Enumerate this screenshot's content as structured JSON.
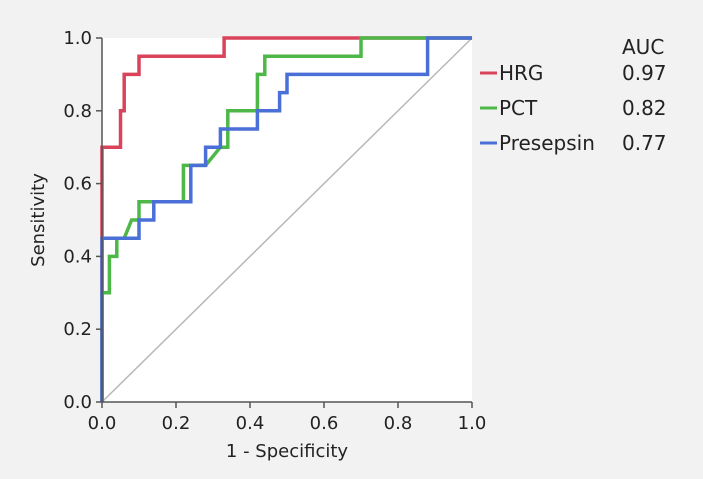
{
  "chart_data": {
    "type": "line",
    "title": "",
    "xlabel": "1 - Specificity",
    "ylabel": "Sensitivity",
    "xlim": [
      0,
      1
    ],
    "ylim": [
      0,
      1
    ],
    "xticks": [
      "0.0",
      "0.2",
      "0.4",
      "0.6",
      "0.8",
      "1.0"
    ],
    "yticks": [
      "0.0",
      "0.2",
      "0.4",
      "0.6",
      "0.8",
      "1.0"
    ],
    "legend_header": "AUC",
    "legend_position": "right",
    "diagonal_reference": true,
    "series": [
      {
        "name": "HRG",
        "auc": "0.97",
        "color": "#d9445a",
        "points": [
          [
            0,
            0
          ],
          [
            0,
            0.7
          ],
          [
            0.05,
            0.7
          ],
          [
            0.05,
            0.8
          ],
          [
            0.06,
            0.8
          ],
          [
            0.06,
            0.9
          ],
          [
            0.1,
            0.9
          ],
          [
            0.1,
            0.95
          ],
          [
            0.33,
            0.95
          ],
          [
            0.33,
            1.0
          ],
          [
            1.0,
            1.0
          ]
        ]
      },
      {
        "name": "PCT",
        "auc": "0.82",
        "color": "#4db848",
        "points": [
          [
            0,
            0
          ],
          [
            0,
            0.3
          ],
          [
            0.02,
            0.3
          ],
          [
            0.02,
            0.4
          ],
          [
            0.04,
            0.4
          ],
          [
            0.04,
            0.45
          ],
          [
            0.06,
            0.45
          ],
          [
            0.08,
            0.5
          ],
          [
            0.1,
            0.5
          ],
          [
            0.1,
            0.55
          ],
          [
            0.2,
            0.55
          ],
          [
            0.22,
            0.55
          ],
          [
            0.22,
            0.65
          ],
          [
            0.28,
            0.65
          ],
          [
            0.32,
            0.7
          ],
          [
            0.34,
            0.7
          ],
          [
            0.34,
            0.8
          ],
          [
            0.42,
            0.8
          ],
          [
            0.42,
            0.9
          ],
          [
            0.44,
            0.9
          ],
          [
            0.44,
            0.95
          ],
          [
            0.7,
            0.95
          ],
          [
            0.7,
            1.0
          ],
          [
            1.0,
            1.0
          ]
        ]
      },
      {
        "name": "Presepsin",
        "auc": "0.77",
        "color": "#4a6fd6",
        "points": [
          [
            0,
            0
          ],
          [
            0,
            0.45
          ],
          [
            0.1,
            0.45
          ],
          [
            0.1,
            0.5
          ],
          [
            0.14,
            0.5
          ],
          [
            0.14,
            0.55
          ],
          [
            0.24,
            0.55
          ],
          [
            0.24,
            0.65
          ],
          [
            0.28,
            0.65
          ],
          [
            0.28,
            0.7
          ],
          [
            0.32,
            0.7
          ],
          [
            0.32,
            0.75
          ],
          [
            0.42,
            0.75
          ],
          [
            0.42,
            0.8
          ],
          [
            0.48,
            0.8
          ],
          [
            0.48,
            0.85
          ],
          [
            0.5,
            0.85
          ],
          [
            0.5,
            0.9
          ],
          [
            0.88,
            0.9
          ],
          [
            0.88,
            1.0
          ],
          [
            1.0,
            1.0
          ]
        ]
      }
    ]
  }
}
